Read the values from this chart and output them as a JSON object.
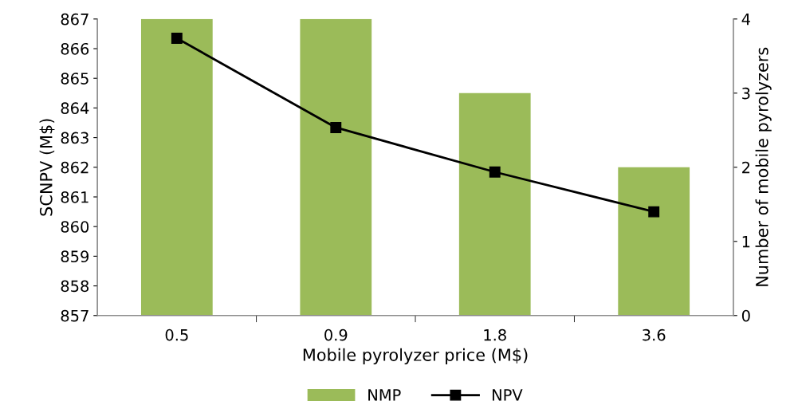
{
  "chart_data": {
    "type": "bar",
    "xlabel": "Mobile pyrolyzer price (M$)",
    "ylabel": "SCNPV (M$)",
    "y2label": "Number of mobile pyrolyzers",
    "categories": [
      "0.5",
      "0.9",
      "1.8",
      "3.6"
    ],
    "series": [
      {
        "name": "NMP",
        "axis": "y2",
        "color": "#9bbb59",
        "values": [
          4,
          4,
          3,
          2
        ]
      },
      {
        "name": "NPV",
        "type": "line",
        "axis": "y",
        "color": "#000000",
        "marker": "square",
        "values": [
          866.35,
          863.34,
          861.84,
          860.5
        ]
      }
    ],
    "ylim": [
      857,
      867
    ],
    "yticks": [
      857,
      858,
      859,
      860,
      861,
      862,
      863,
      864,
      865,
      866,
      867
    ],
    "y2lim": [
      0,
      4
    ],
    "y2ticks": [
      0,
      1,
      2,
      3,
      4
    ],
    "legend": "bottom",
    "grid": false
  }
}
